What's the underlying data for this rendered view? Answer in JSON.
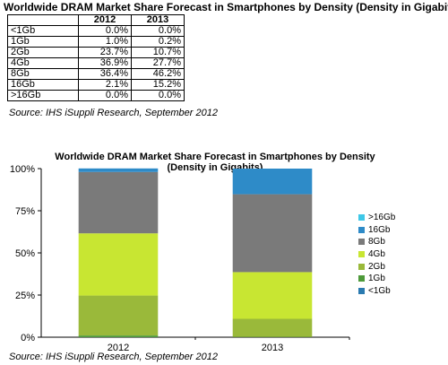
{
  "page": {
    "title": "Worldwide DRAM Market Share Forecast in Smartphones by Density (Density in Gigabits)",
    "source": "Source: IHS iSuppli Research, September 2012"
  },
  "table": {
    "header": [
      "",
      "2012",
      "2013"
    ],
    "rows": [
      [
        "<1Gb",
        "0.0%",
        "0.0%"
      ],
      [
        "1Gb",
        "1.0%",
        "0.2%"
      ],
      [
        "2Gb",
        "23.7%",
        "10.7%"
      ],
      [
        "4Gb",
        "36.9%",
        "27.7%"
      ],
      [
        "8Gb",
        "36.4%",
        "46.2%"
      ],
      [
        "16Gb",
        "2.1%",
        "15.2%"
      ],
      [
        ">16Gb",
        "0.0%",
        "0.0%"
      ]
    ]
  },
  "chart_data": {
    "type": "bar",
    "stacked": true,
    "title": "Worldwide DRAM Market Share Forecast in Smartphones by Density (Density in Gigabits)",
    "categories": [
      "2012",
      "2013"
    ],
    "ylim": [
      0,
      100
    ],
    "yticks": [
      "0%",
      "25%",
      "50%",
      "75%",
      "100%"
    ],
    "grid": false,
    "legend_position": "right",
    "series": [
      {
        "name": "<1Gb",
        "values": [
          0.0,
          0.0
        ],
        "color": "#2a7ab0"
      },
      {
        "name": "1Gb",
        "values": [
          1.0,
          0.2
        ],
        "color": "#4e9a3a"
      },
      {
        "name": "2Gb",
        "values": [
          23.7,
          10.7
        ],
        "color": "#9ab93a"
      },
      {
        "name": "4Gb",
        "values": [
          36.9,
          27.7
        ],
        "color": "#c8e632"
      },
      {
        "name": "8Gb",
        "values": [
          36.4,
          46.2
        ],
        "color": "#7a7a7a"
      },
      {
        "name": "16Gb",
        "values": [
          2.1,
          15.2
        ],
        "color": "#2e8bc8"
      },
      {
        "name": ">16Gb",
        "values": [
          0.0,
          0.0
        ],
        "color": "#3ec8e8"
      }
    ],
    "source": "Source: IHS iSuppli Research, September 2012"
  }
}
